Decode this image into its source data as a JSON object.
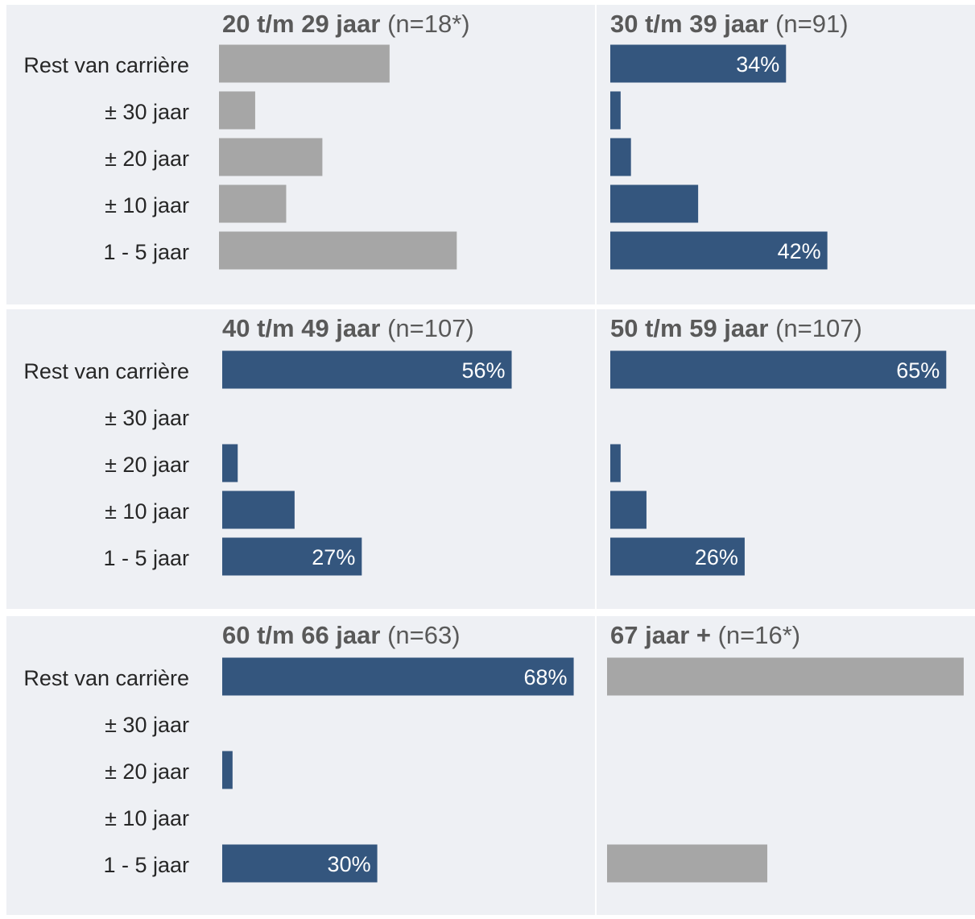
{
  "colors": {
    "background": "#ffffff",
    "panel_background": "#eef0f4",
    "bar_main": "#34567e",
    "bar_low_n": "#a6a6a6",
    "label_text": "#262626",
    "title_text": "#595959",
    "value_text": "#ffffff"
  },
  "chart_data": [
    {
      "type": "bar",
      "orientation": "horizontal",
      "title_bold": "20 t/m 29 jaar",
      "title_rest": "(n=18*)",
      "low_sample": true,
      "categories": [
        "Rest van carrière",
        "± 30 jaar",
        "± 20 jaar",
        "± 10 jaar",
        "1 - 5 jaar"
      ],
      "values": [
        33,
        7,
        20,
        13,
        46
      ],
      "value_labels": [
        "",
        "",
        "",
        "",
        ""
      ]
    },
    {
      "type": "bar",
      "orientation": "horizontal",
      "title_bold": "30 t/m 39 jaar",
      "title_rest": "(n=91)",
      "low_sample": false,
      "categories": [
        "Rest van carrière",
        "± 30 jaar",
        "± 20 jaar",
        "± 10 jaar",
        "1 - 5 jaar"
      ],
      "values": [
        34,
        2,
        4,
        17,
        42
      ],
      "value_labels": [
        "34%",
        "",
        "",
        "",
        "42%"
      ]
    },
    {
      "type": "bar",
      "orientation": "horizontal",
      "title_bold": "40 t/m 49 jaar",
      "title_rest": "(n=107)",
      "low_sample": false,
      "categories": [
        "Rest van carrière",
        "± 30 jaar",
        "± 20 jaar",
        "± 10 jaar",
        "1 - 5 jaar"
      ],
      "values": [
        56,
        0,
        3,
        14,
        27
      ],
      "value_labels": [
        "56%",
        "",
        "",
        "",
        "27%"
      ]
    },
    {
      "type": "bar",
      "orientation": "horizontal",
      "title_bold": "50 t/m 59 jaar",
      "title_rest": "(n=107)",
      "low_sample": false,
      "categories": [
        "Rest van carrière",
        "± 30 jaar",
        "± 20 jaar",
        "± 10 jaar",
        "1 - 5 jaar"
      ],
      "values": [
        65,
        0,
        2,
        7,
        26
      ],
      "value_labels": [
        "65%",
        "",
        "",
        "",
        "26%"
      ]
    },
    {
      "type": "bar",
      "orientation": "horizontal",
      "title_bold": "60 t/m 66 jaar",
      "title_rest": "(n=63)",
      "low_sample": false,
      "categories": [
        "Rest van carrière",
        "± 30 jaar",
        "± 20 jaar",
        "± 10 jaar",
        "1 - 5 jaar"
      ],
      "values": [
        68,
        0,
        2,
        0,
        30
      ],
      "value_labels": [
        "68%",
        "",
        "",
        "",
        "30%"
      ]
    },
    {
      "type": "bar",
      "orientation": "horizontal",
      "title_bold": "67 jaar +",
      "title_rest": "(n=16*)",
      "low_sample": true,
      "categories": [
        "Rest van carrière",
        "± 30 jaar",
        "± 20 jaar",
        "± 10 jaar",
        "1 - 5 jaar"
      ],
      "values": [
        69,
        0,
        0,
        0,
        31
      ],
      "value_labels": [
        "",
        "",
        "",
        "",
        ""
      ]
    }
  ]
}
